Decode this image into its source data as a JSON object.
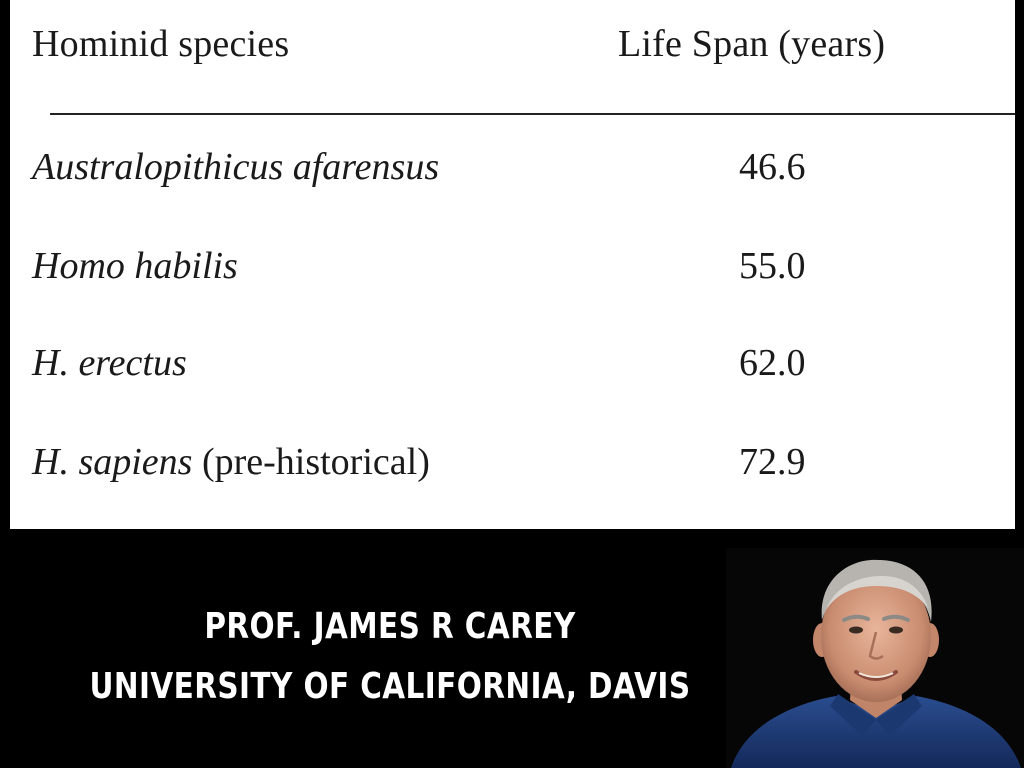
{
  "table": {
    "header_species": "Hominid species",
    "header_lifespan": "Life Span (years)",
    "rows": [
      {
        "species_italic": "Australopithicus afarensus",
        "species_rest": "",
        "value": "46.6"
      },
      {
        "species_italic": "Homo habilis",
        "species_rest": "",
        "value": "55.0"
      },
      {
        "species_italic": "H. erectus",
        "species_rest": "",
        "value": "62.0"
      },
      {
        "species_italic": "H. sapiens",
        "species_rest": " (pre-historical)",
        "value": "72.9"
      }
    ]
  },
  "credit": {
    "name": "PROF. JAMES R CAREY",
    "affiliation": "UNIVERSITY OF CALIFORNIA, DAVIS"
  },
  "colors": {
    "background": "#000000",
    "panel": "#ffffff",
    "shirt": "#1f3f7a"
  }
}
